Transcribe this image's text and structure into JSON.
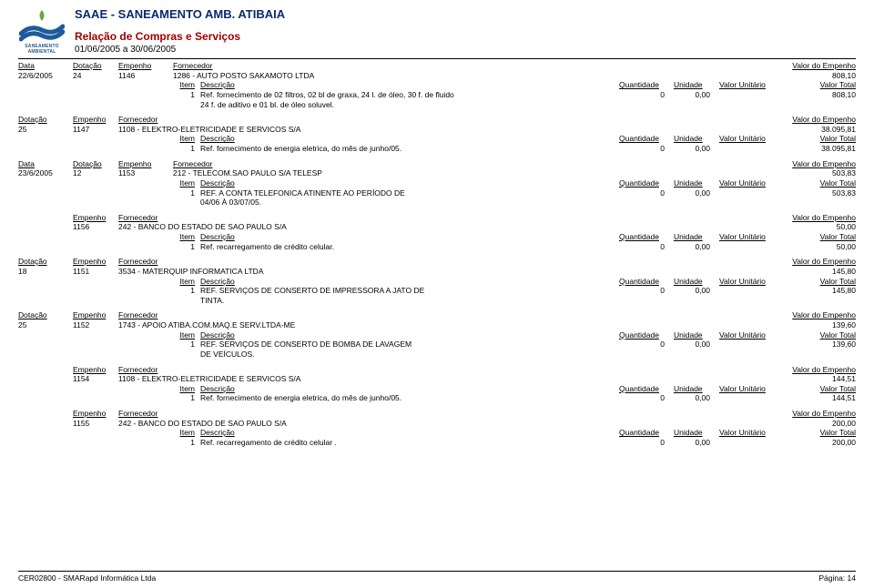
{
  "header": {
    "company": "SAAE - SANEAMENTO AMB. ATIBAIA",
    "subtitle": "Relação de Compras e Serviços",
    "period": "01/06/2005 a 30/06/2005",
    "logo_label": "SANEAMENTO AMBIENTAL"
  },
  "labels": {
    "data": "Data",
    "dotacao": "Dotação",
    "empenho": "Empenho",
    "fornecedor": "Fornecedor",
    "valor_do_empenho": "Valor do Empenho",
    "item": "Item",
    "descricao": "Descrição",
    "quantidade": "Quantidade",
    "unidade": "Unidade",
    "valor_unitario": "Valor Unitário",
    "valor_total": "Valor Total"
  },
  "blocks": [
    {
      "type": "data",
      "data": "22/6/2005",
      "dotacao": "24",
      "empenho": "1146",
      "fornecedor": "1286 - AUTO POSTO SAKAMOTO LTDA",
      "valor_empenho": "808,10",
      "items": [
        {
          "n": "1",
          "desc": "Ref. fornecimento de 02 filtros, 02 bl de graxa, 24 l. de óleo, 30 f. de fluido",
          "desc2": "24 f. de aditivo e 01 bl. de óleo soluvel.",
          "q": "0",
          "vu": "0,00",
          "vt": "808,10"
        }
      ]
    },
    {
      "type": "dotacao",
      "dotacao": "25",
      "empenho": "1147",
      "fornecedor": "1108 - ELEKTRO-ELETRICIDADE E SERVICOS S/A",
      "valor_empenho": "38.095,81",
      "items": [
        {
          "n": "1",
          "desc": "Ref. fornecimento de energia eletrica, do mês de junho/05.",
          "q": "0",
          "vu": "0,00",
          "vt": "38.095,81"
        }
      ]
    },
    {
      "type": "data",
      "data": "23/6/2005",
      "dotacao": "12",
      "empenho": "1153",
      "fornecedor": "212 - TELECOM.SAO PAULO S/A TELESP",
      "valor_empenho": "503,83",
      "items": [
        {
          "n": "1",
          "desc": "REF. A CONTA TELEFONICA ATINENTE AO PERÍODO DE",
          "desc2": "04/06 À 03/07/05.",
          "q": "0",
          "vu": "0,00",
          "vt": "503,83"
        }
      ]
    },
    {
      "type": "empenho",
      "empenho": "1156",
      "fornecedor": "242 - BANCO DO ESTADO DE SAO PAULO S/A",
      "valor_empenho": "50,00",
      "items": [
        {
          "n": "1",
          "desc": "Ref. recarregamento de crédito celular.",
          "q": "0",
          "vu": "0,00",
          "vt": "50,00"
        }
      ]
    },
    {
      "type": "dotacao",
      "dotacao": "18",
      "empenho": "1151",
      "fornecedor": "3534 - MATERQUIP INFORMATICA LTDA",
      "valor_empenho": "145,80",
      "items": [
        {
          "n": "1",
          "desc": "REF. SERVIÇOS DE CONSERTO DE IMPRESSORA A JATO DE",
          "desc2": "TINTA.",
          "q": "0",
          "vu": "0,00",
          "vt": "145,80"
        }
      ]
    },
    {
      "type": "dotacao",
      "dotacao": "25",
      "empenho": "1152",
      "fornecedor": "1743 - APOIO ATIBA.COM.MAQ.E SERV.LTDA-ME",
      "valor_empenho": "139,60",
      "items": [
        {
          "n": "1",
          "desc": "REF. SERVIÇOS DE CONSERTO DE BOMBA DE LAVAGEM",
          "desc2": "DE VEÍCULOS.",
          "q": "0",
          "vu": "0,00",
          "vt": "139,60"
        }
      ]
    },
    {
      "type": "empenho",
      "empenho": "1154",
      "fornecedor": "1108 - ELEKTRO-ELETRICIDADE E SERVICOS S/A",
      "valor_empenho": "144,51",
      "items": [
        {
          "n": "1",
          "desc": "Ref. fornecimento de energia eletrica, do mês de junho/05.",
          "q": "0",
          "vu": "0,00",
          "vt": "144,51"
        }
      ]
    },
    {
      "type": "empenho",
      "empenho": "1155",
      "fornecedor": "242 - BANCO DO ESTADO DE SAO PAULO S/A",
      "valor_empenho": "200,00",
      "items": [
        {
          "n": "1",
          "desc": "Ref. recarregamento de crédito celular .",
          "q": "0",
          "vu": "0,00",
          "vt": "200,00"
        }
      ]
    }
  ],
  "footer": {
    "left": "CER02800 - SMARapd Informática Ltda",
    "right": "Página:   14"
  },
  "colors": {
    "title": "#0a2a6e",
    "subtitle": "#a00000",
    "logo_blue": "#1e5a9c",
    "logo_green": "#6aa644"
  }
}
